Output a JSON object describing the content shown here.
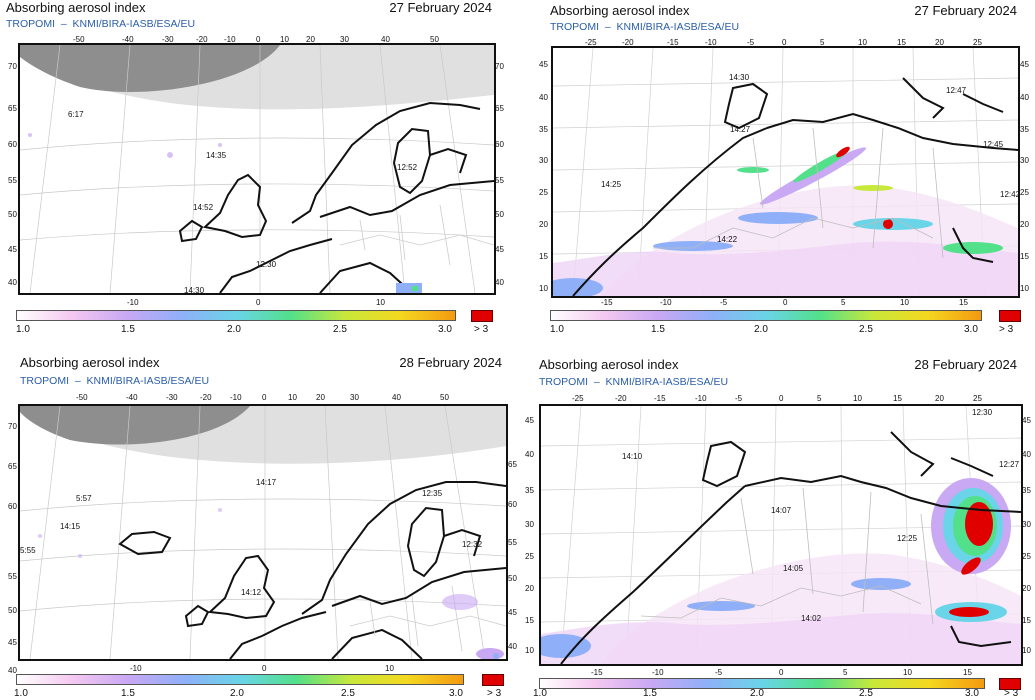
{
  "panels": [
    {
      "title": "Absorbing aerosol index",
      "date": "27 February 2024",
      "subtitle": "TROPOMI  –  KNMI/BIRA-IASB/ESA/EU",
      "top_ticks": [
        "-50",
        "-40",
        "-30",
        "-20",
        "-10",
        "0",
        "10",
        "20",
        "30",
        "40",
        "50"
      ],
      "bottom_ticks": [
        "-10",
        "0",
        "10"
      ],
      "left_ticks": [
        "70",
        "65",
        "60",
        "55",
        "50",
        "45",
        "40"
      ],
      "right_ticks": [
        "70",
        "65",
        "60",
        "55",
        "50",
        "45",
        "40"
      ],
      "overpass": [
        "6:17",
        "14:35",
        "12:52",
        "14:52",
        "12:30",
        "14:30"
      ],
      "colorbar": [
        "1.0",
        "1.5",
        "2.0",
        "2.5",
        "3.0",
        "> 3"
      ]
    },
    {
      "title": "Absorbing aerosol index",
      "date": "27 February 2024",
      "subtitle": "TROPOMI  –  KNMI/BIRA-IASB/ESA/EU",
      "top_ticks": [
        "-25",
        "-20",
        "-15",
        "-10",
        "-5",
        "0",
        "5",
        "10",
        "15",
        "20",
        "25"
      ],
      "bottom_ticks": [
        "-15",
        "-10",
        "-5",
        "0",
        "5",
        "10",
        "15"
      ],
      "left_ticks": [
        "45",
        "40",
        "35",
        "30",
        "25",
        "20",
        "15",
        "10"
      ],
      "right_ticks": [
        "45",
        "40",
        "35",
        "30",
        "25",
        "20",
        "15",
        "10"
      ],
      "overpass": [
        "14:30",
        "12:47",
        "14:27",
        "12:45",
        "14:25",
        "12:42",
        "14:22"
      ],
      "colorbar": [
        "1.0",
        "1.5",
        "2.0",
        "2.5",
        "3.0",
        "> 3"
      ]
    },
    {
      "title": "Absorbing aerosol index",
      "date": "28 February 2024",
      "subtitle": "TROPOMI  –  KNMI/BIRA-IASB/ESA/EU",
      "top_ticks": [
        "-50",
        "-40",
        "-30",
        "-20",
        "-10",
        "0",
        "10",
        "20",
        "30",
        "40",
        "50"
      ],
      "bottom_ticks": [
        "-10",
        "0",
        "10"
      ],
      "left_ticks": [
        "70",
        "65",
        "60",
        "55",
        "50",
        "45",
        "40"
      ],
      "right_ticks": [
        "65",
        "60",
        "55",
        "50",
        "45",
        "40"
      ],
      "overpass": [
        "14:17",
        "5:57",
        "12:35",
        "14:15",
        "5:55",
        "12:32",
        "14:12"
      ],
      "colorbar": [
        "1.0",
        "1.5",
        "2.0",
        "2.5",
        "3.0",
        "> 3"
      ]
    },
    {
      "title": "Absorbing aerosol index",
      "date": "28 February 2024",
      "subtitle": "TROPOMI  –  KNMI/BIRA-IASB/ESA/EU",
      "top_ticks": [
        "-25",
        "-20",
        "-15",
        "-10",
        "-5",
        "0",
        "5",
        "10",
        "15",
        "20",
        "25"
      ],
      "bottom_ticks": [
        "-15",
        "-10",
        "-5",
        "0",
        "5",
        "10",
        "15"
      ],
      "left_ticks": [
        "45",
        "40",
        "35",
        "30",
        "25",
        "20",
        "15",
        "10"
      ],
      "right_ticks": [
        "45",
        "40",
        "35",
        "30",
        "25",
        "20",
        "15",
        "10"
      ],
      "overpass": [
        "12:30",
        "14:10",
        "12:27",
        "14:07",
        "12:25",
        "14:05",
        "14:02"
      ],
      "colorbar": [
        "1.0",
        "1.5",
        "2.0",
        "2.5",
        "3.0",
        "> 3"
      ]
    }
  ],
  "colors": {
    "gradient": [
      "#ffffff",
      "#f4c8f0",
      "#c9a8f4",
      "#8fb0f8",
      "#6ad4e8",
      "#52e08a",
      "#c8e83a",
      "#f4d820",
      "#f49a10"
    ],
    "over": "#e00000",
    "subtitle": "#2a5ea8"
  }
}
